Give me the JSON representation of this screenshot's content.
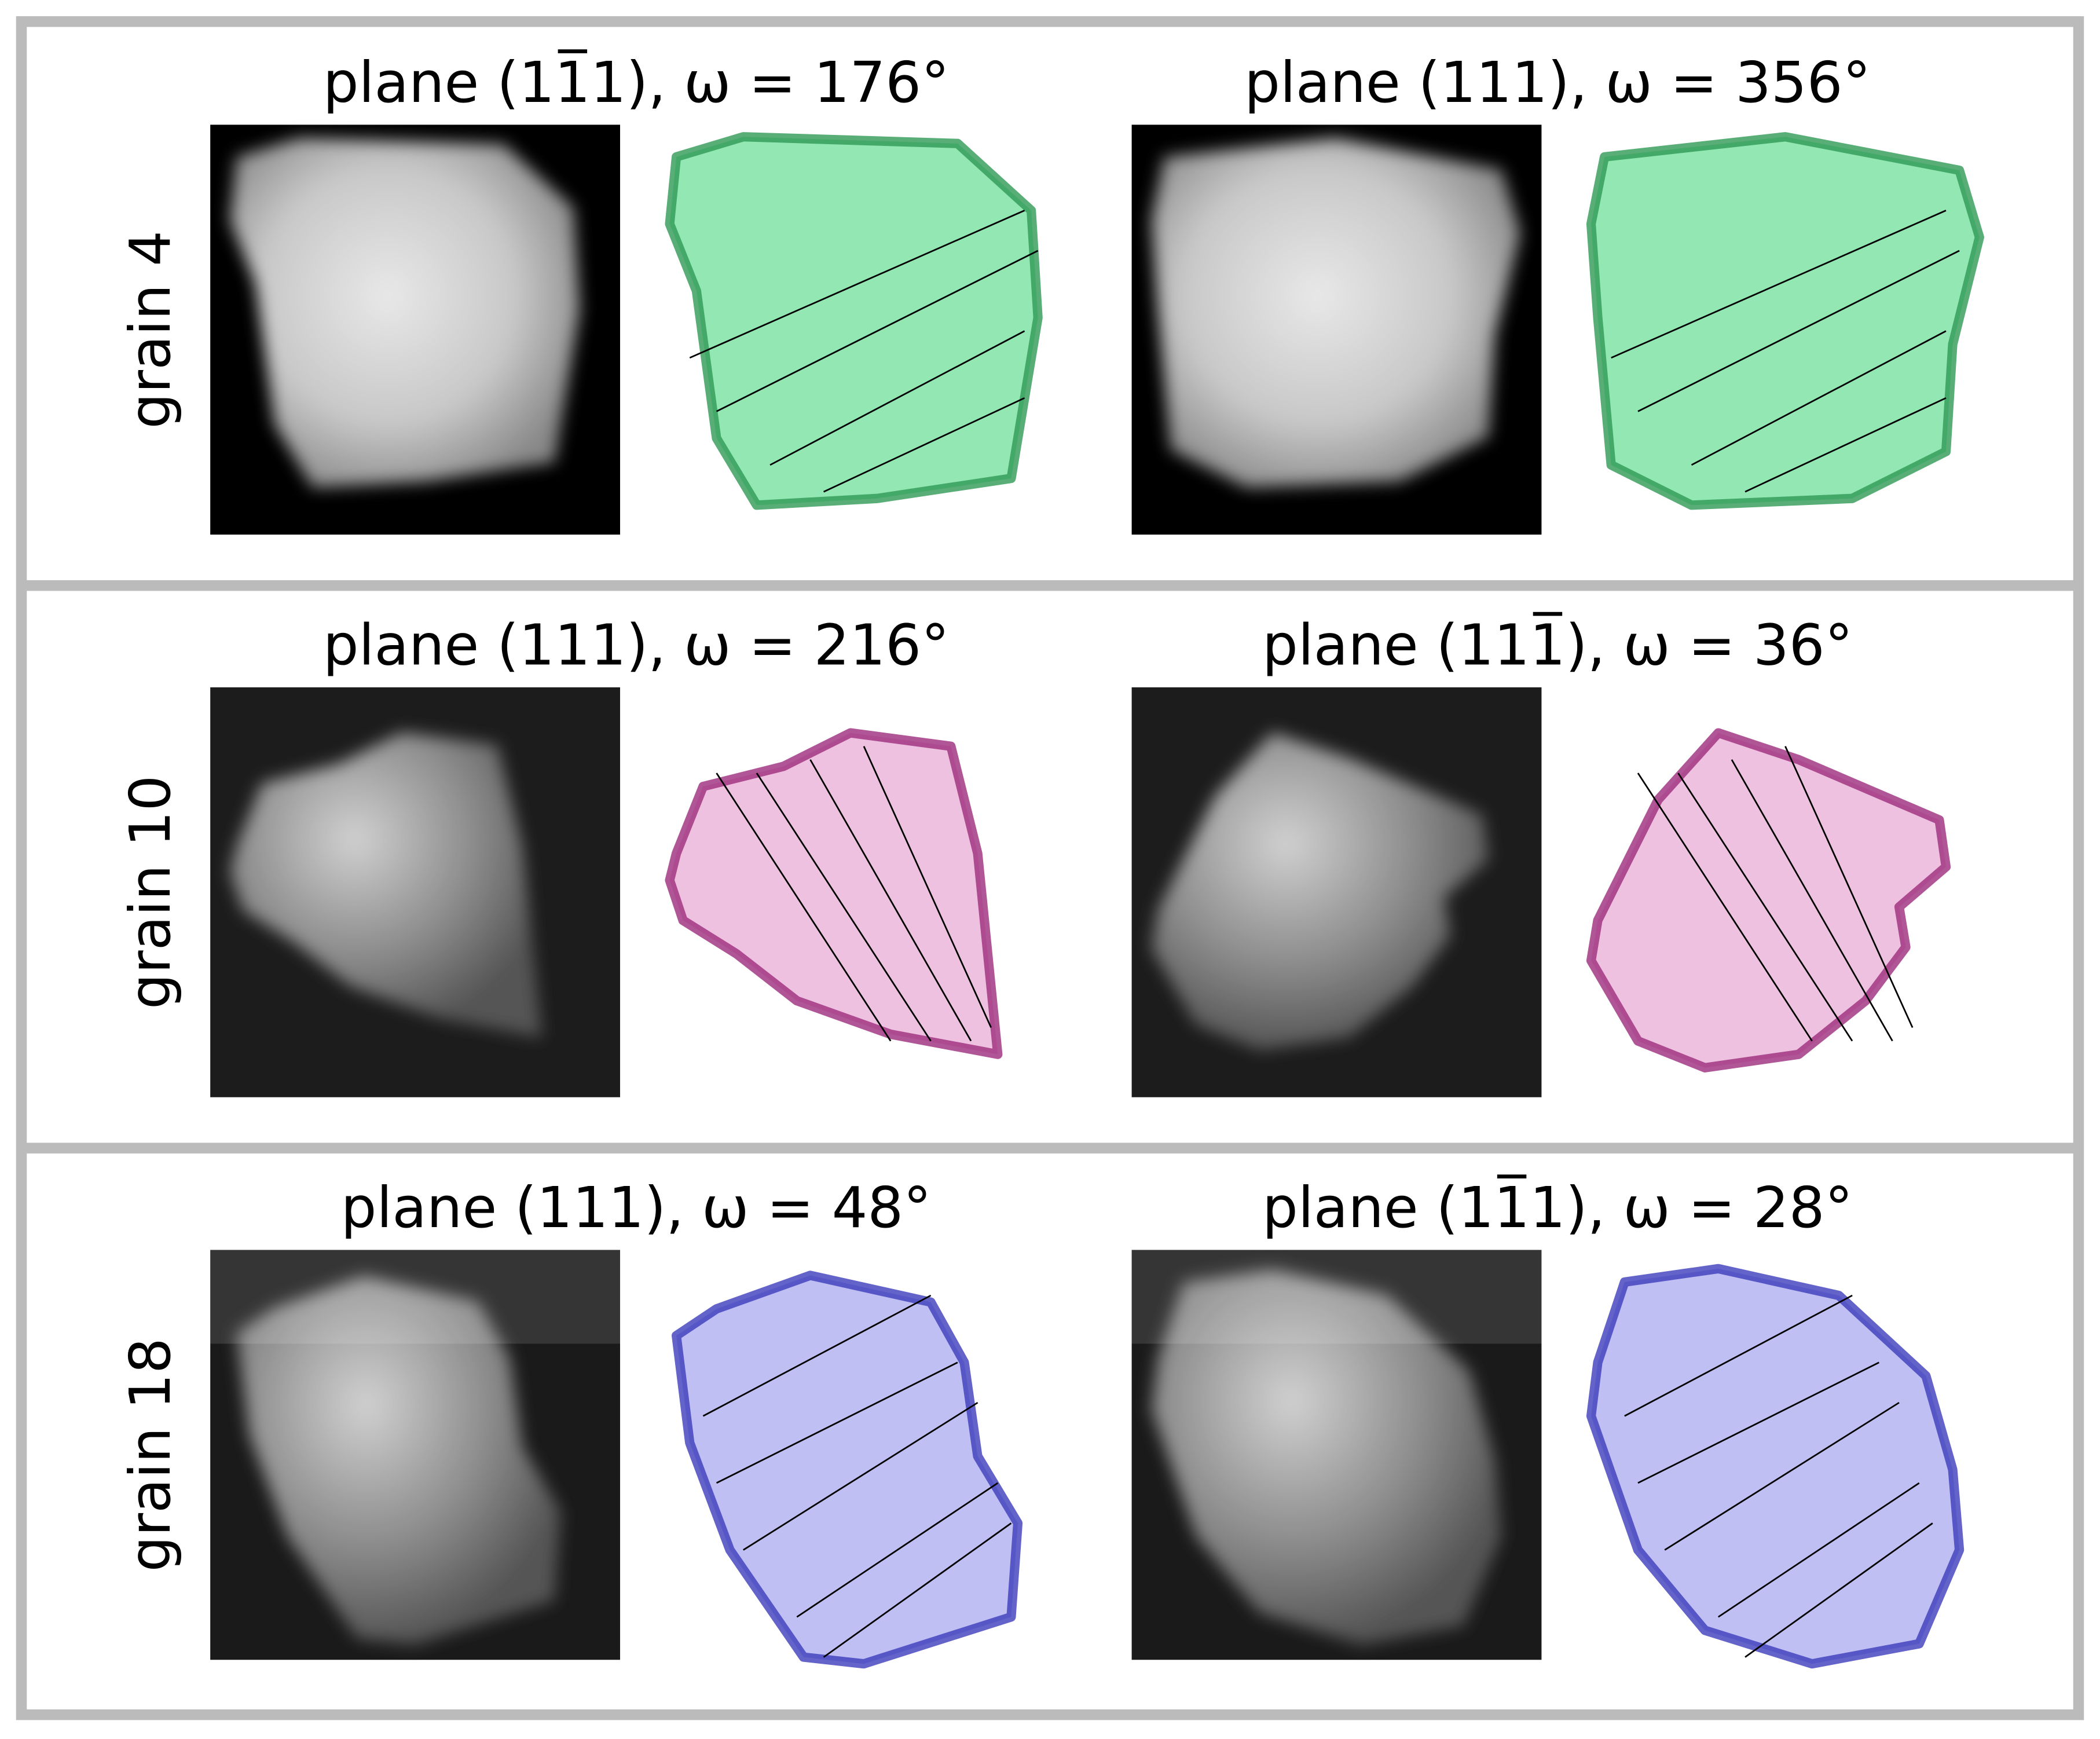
{
  "rows": [
    {
      "label": "grain 4",
      "panels": [
        {
          "title": "plane (11̅1), ω = 176°"
        },
        {
          "title": "plane (111), ω = 356°"
        }
      ]
    },
    {
      "label": "grain 10",
      "panels": [
        {
          "title": "plane (111), ω = 216°"
        },
        {
          "title": "plane (111̅), ω = 36°"
        }
      ]
    },
    {
      "label": "grain 18",
      "panels": [
        {
          "title": "plane (111), ω = 48°"
        },
        {
          "title": "plane (11̅1), ω = 28°"
        }
      ]
    }
  ]
}
